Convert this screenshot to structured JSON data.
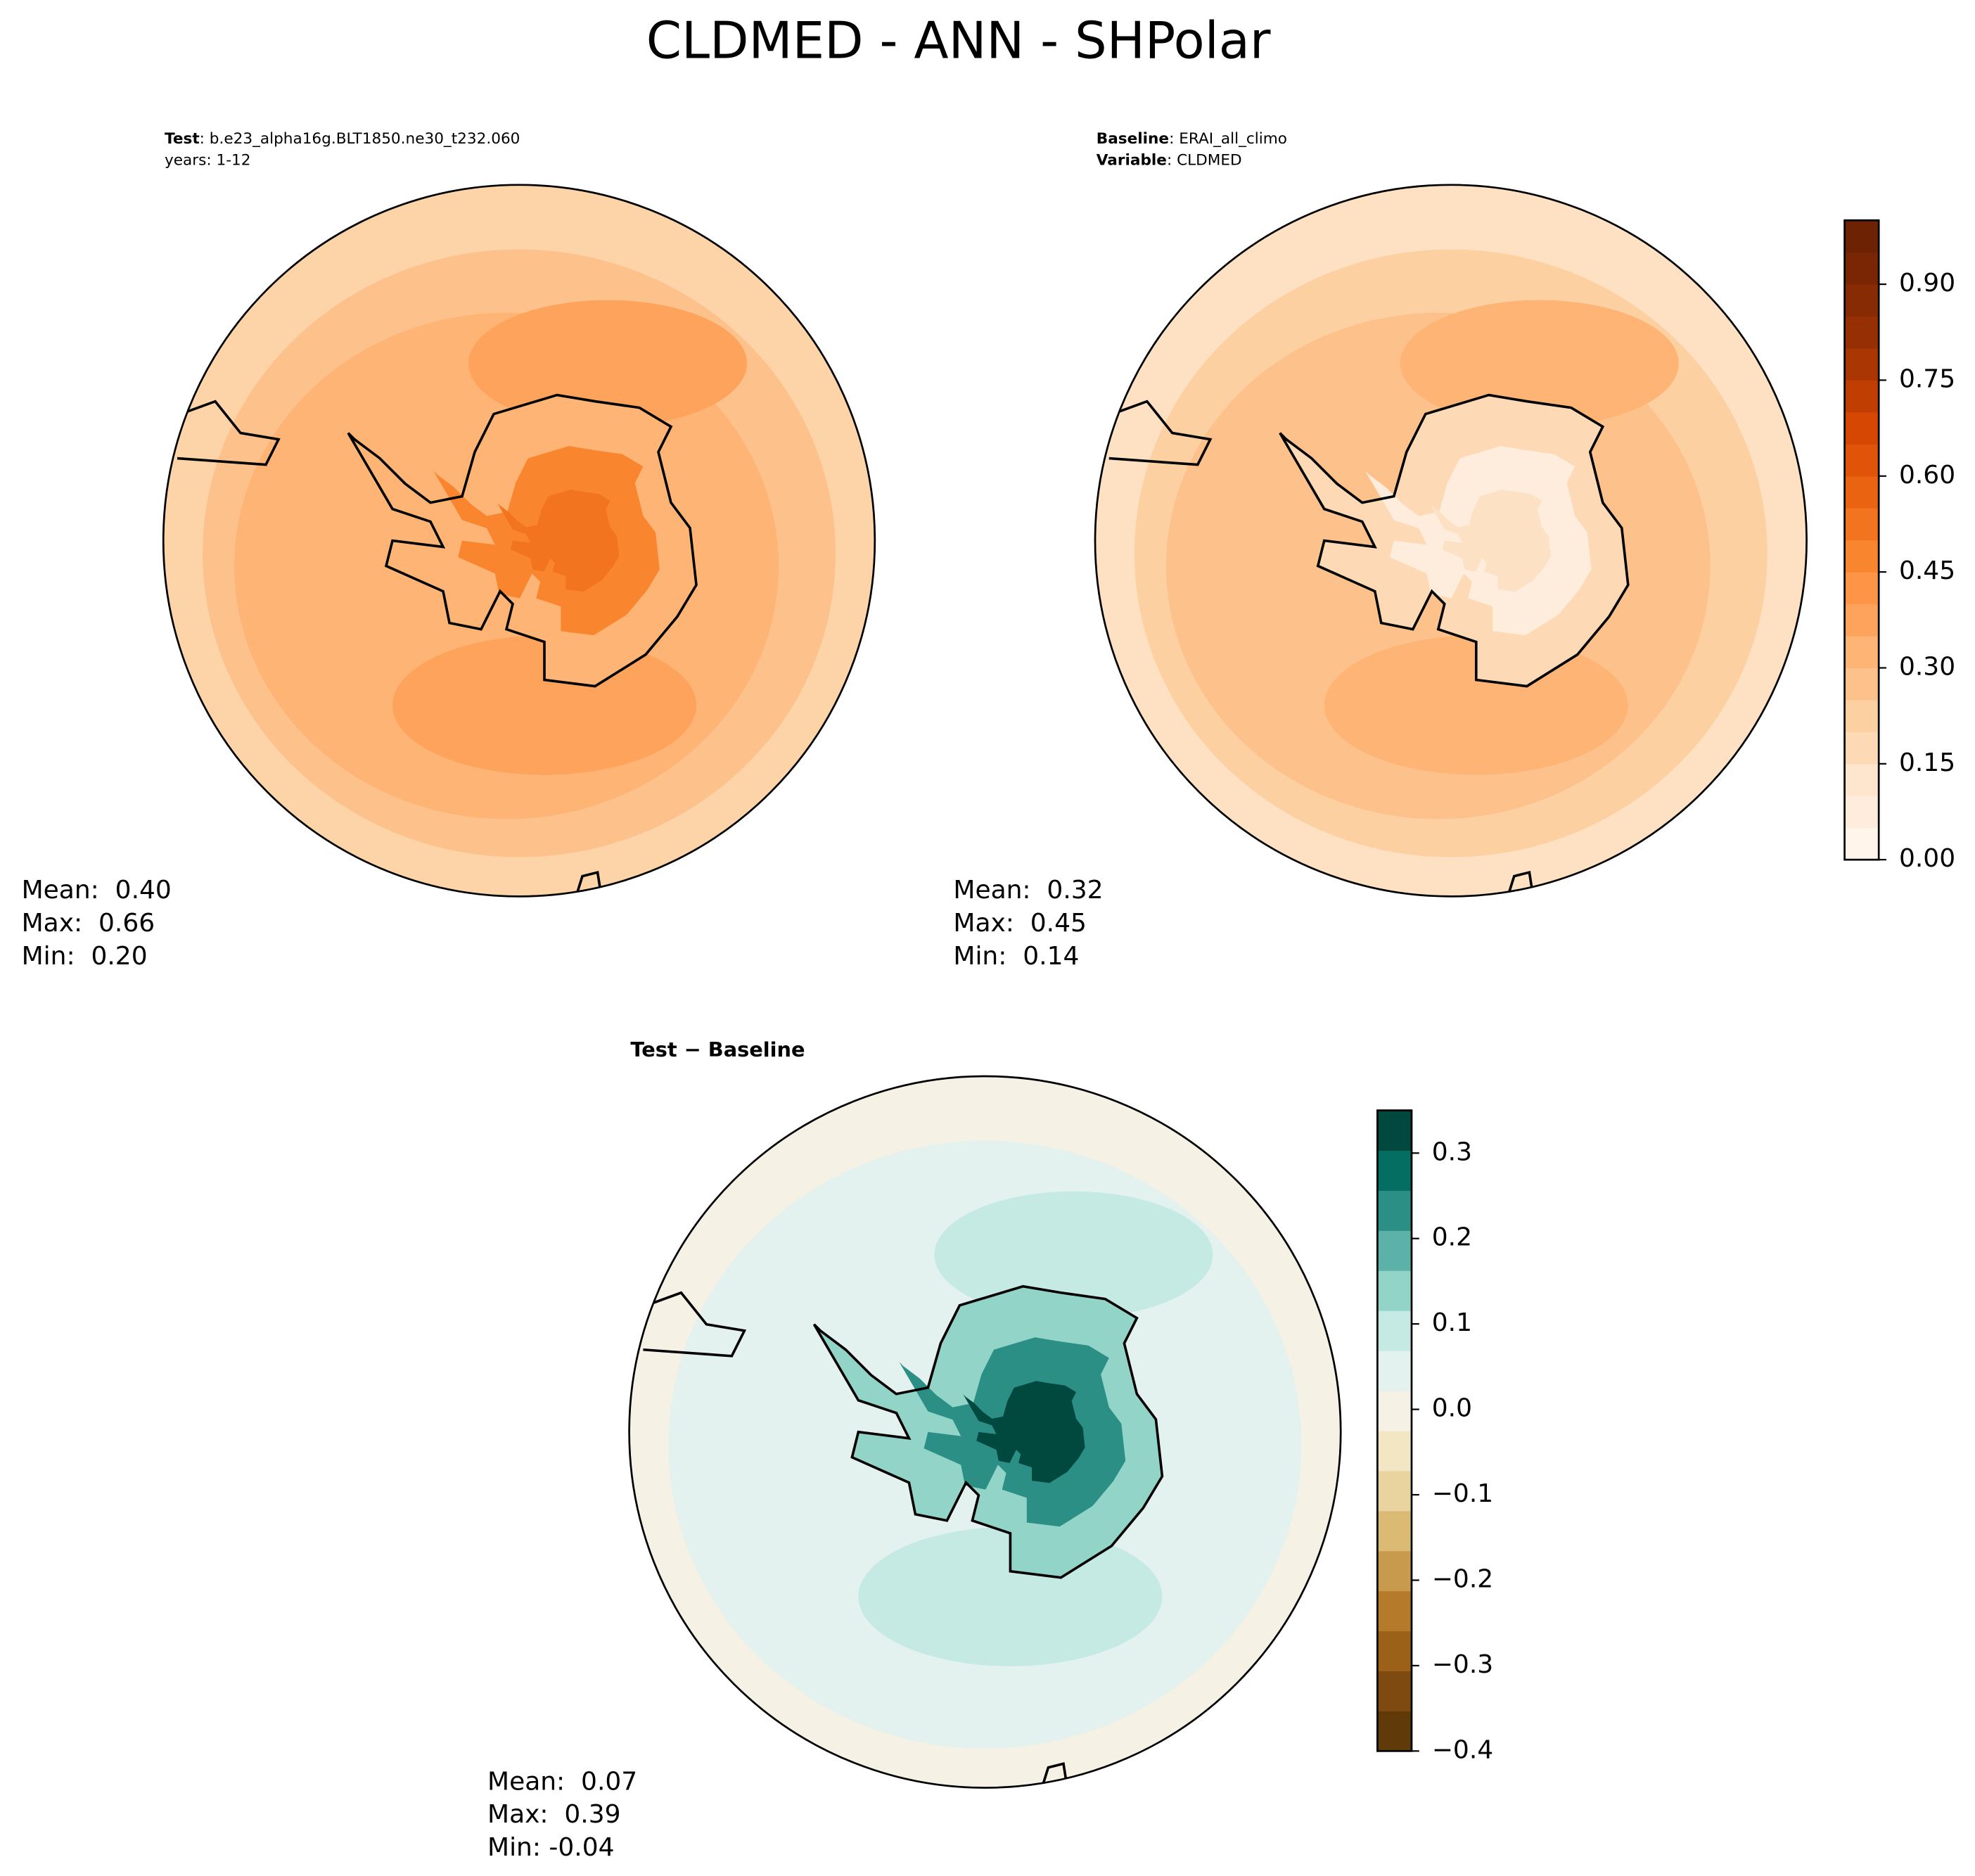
{
  "title": "CLDMED - ANN - SHPolar",
  "chart_data": [
    {
      "type": "polar-map",
      "header": [
        {
          "bold": "Test",
          "text": ": b.e23_alpha16g.BLT1850.ne30_t232.060"
        },
        {
          "text": "years: 1-12"
        }
      ],
      "stats": [
        "Mean:  0.40",
        "Max:  0.66",
        "Min:  0.20"
      ]
    },
    {
      "type": "polar-map",
      "header": [
        {
          "bold": "Baseline",
          "text": ": ERAI_all_climo"
        },
        {
          "bold": "Variable",
          "text": ": CLDMED"
        }
      ],
      "stats": [
        "Mean:  0.32",
        "Max:  0.45",
        "Min:  0.14"
      ],
      "colorbar": {
        "lim": [
          0,
          1
        ],
        "ticks": [
          {
            "value": 0,
            "label": "0.00"
          },
          {
            "value": 0.15,
            "label": "0.15"
          },
          {
            "value": 0.3,
            "label": "0.30"
          },
          {
            "value": 0.45,
            "label": "0.45"
          },
          {
            "value": 0.6,
            "label": "0.60"
          },
          {
            "value": 0.75,
            "label": "0.75"
          },
          {
            "value": 0.9,
            "label": "0.90"
          }
        ],
        "colors": [
          "#fff5eb",
          "#feeddc",
          "#fee6ce",
          "#fdd9b5",
          "#fdd0a2",
          "#fdc28c",
          "#fdb475",
          "#fda35c",
          "#fd9446",
          "#f9852f",
          "#f3741f",
          "#ea6310",
          "#e05409",
          "#d54703",
          "#c03e02",
          "#aa3703",
          "#963004",
          "#862b04",
          "#7a2604",
          "#6e2204"
        ]
      }
    },
    {
      "type": "polar-map",
      "header": [
        {
          "bold": "Test − Baseline"
        }
      ],
      "stats": [
        "Mean:  0.07",
        "Max:  0.39",
        "Min: -0.04"
      ],
      "colorbar": {
        "lim": [
          -0.4,
          0.35
        ],
        "ticks": [
          {
            "value": -0.4,
            "label": "−0.4"
          },
          {
            "value": -0.3,
            "label": "−0.3"
          },
          {
            "value": -0.2,
            "label": "−0.2"
          },
          {
            "value": -0.1,
            "label": "−0.1"
          },
          {
            "value": 0,
            "label": "0.0"
          },
          0.1,
          0.2,
          0.3
        ],
        "colors": [
          "#613a09",
          "#7f4a0f",
          "#9c6118",
          "#b57a2a",
          "#c89a4e",
          "#dbba74",
          "#e9d39e",
          "#f3e6c3",
          "#f5f1e4",
          "#e3f1ef",
          "#c5e9e3",
          "#93d4c9",
          "#5cb2a8",
          "#2c8f86",
          "#046e62",
          "#01493f"
        ]
      }
    }
  ]
}
